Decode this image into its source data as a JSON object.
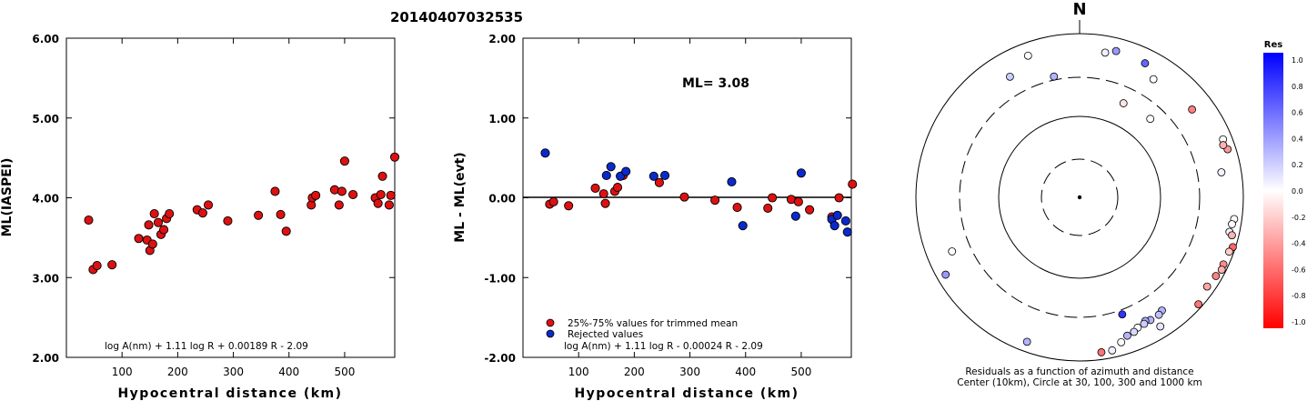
{
  "title": "20140407032535",
  "chart_data": [
    {
      "type": "scatter",
      "ylabel": "ML(IASPEI)",
      "xlabel": "Hypocentral distance (km)",
      "xlim": [
        0,
        590
      ],
      "ylim": [
        2.0,
        6.0
      ],
      "xticks": [
        100,
        200,
        300,
        400,
        500
      ],
      "yticks": [
        "2.00",
        "3.00",
        "4.00",
        "5.00",
        "6.00"
      ],
      "formula": "log A(nm) + 1.11 log R + 0.00189 R - 2.09",
      "color": "#dd1111",
      "points": [
        [
          40,
          3.72
        ],
        [
          48,
          3.1
        ],
        [
          55,
          3.15
        ],
        [
          82,
          3.16
        ],
        [
          130,
          3.49
        ],
        [
          145,
          3.47
        ],
        [
          148,
          3.66
        ],
        [
          150,
          3.34
        ],
        [
          155,
          3.42
        ],
        [
          158,
          3.8
        ],
        [
          165,
          3.69
        ],
        [
          170,
          3.54
        ],
        [
          175,
          3.6
        ],
        [
          180,
          3.74
        ],
        [
          185,
          3.8
        ],
        [
          235,
          3.85
        ],
        [
          245,
          3.81
        ],
        [
          255,
          3.91
        ],
        [
          290,
          3.71
        ],
        [
          345,
          3.78
        ],
        [
          375,
          4.08
        ],
        [
          385,
          3.79
        ],
        [
          395,
          3.58
        ],
        [
          440,
          3.91
        ],
        [
          442,
          4.0
        ],
        [
          448,
          4.03
        ],
        [
          482,
          4.1
        ],
        [
          490,
          3.91
        ],
        [
          495,
          4.08
        ],
        [
          500,
          4.46
        ],
        [
          515,
          4.04
        ],
        [
          555,
          4.0
        ],
        [
          560,
          3.93
        ],
        [
          565,
          4.04
        ],
        [
          568,
          4.27
        ],
        [
          580,
          3.91
        ],
        [
          583,
          4.03
        ],
        [
          590,
          4.51
        ]
      ]
    },
    {
      "type": "scatter",
      "ylabel": "ML - ML(evt)",
      "xlabel": "Hypocentral distance (km)",
      "xlim": [
        0,
        590
      ],
      "ylim": [
        -2.0,
        2.0
      ],
      "xticks": [
        100,
        200,
        300,
        400,
        500
      ],
      "yticks": [
        "-2.00",
        "-1.00",
        "0.00",
        "1.00",
        "2.00"
      ],
      "annotation": "ML= 3.08",
      "formula": "log A(nm) + 1.11 log R - 0.00024 R - 2.09",
      "legend": [
        {
          "label": "25%-75% values for trimmed mean",
          "color": "#dd1111"
        },
        {
          "label": "Rejected values",
          "color": "#0a2acc"
        }
      ],
      "series": [
        {
          "name": "25%-75% values for trimmed mean",
          "color": "#dd1111",
          "points": [
            [
              48,
              -0.08
            ],
            [
              55,
              -0.05
            ],
            [
              82,
              -0.1
            ],
            [
              130,
              0.12
            ],
            [
              145,
              0.05
            ],
            [
              148,
              -0.07
            ],
            [
              165,
              0.08
            ],
            [
              170,
              0.13
            ],
            [
              180,
              0.28
            ],
            [
              245,
              0.19
            ],
            [
              290,
              0.01
            ],
            [
              345,
              -0.03
            ],
            [
              385,
              -0.12
            ],
            [
              440,
              -0.13
            ],
            [
              448,
              0.0
            ],
            [
              482,
              -0.02
            ],
            [
              495,
              -0.05
            ],
            [
              515,
              -0.15
            ],
            [
              555,
              -0.24
            ],
            [
              568,
              0.0
            ],
            [
              592,
              0.17
            ]
          ]
        },
        {
          "name": "Rejected values",
          "color": "#0a2acc",
          "points": [
            [
              40,
              0.56
            ],
            [
              150,
              0.28
            ],
            [
              158,
              0.39
            ],
            [
              175,
              0.27
            ],
            [
              185,
              0.33
            ],
            [
              235,
              0.27
            ],
            [
              255,
              0.28
            ],
            [
              375,
              0.2
            ],
            [
              395,
              -0.35
            ],
            [
              490,
              -0.23
            ],
            [
              500,
              0.31
            ],
            [
              555,
              -0.27
            ],
            [
              560,
              -0.35
            ],
            [
              565,
              -0.22
            ],
            [
              580,
              -0.29
            ],
            [
              583,
              -0.43
            ]
          ]
        }
      ]
    },
    {
      "type": "polar_scatter",
      "north_label": "N",
      "caption_line1": "Residuals as a function of azimuth and distance",
      "caption_line2": "Center (10km), Circle at 30, 100, 300 and 1000 km",
      "rings_km": [
        30,
        100,
        300,
        1000
      ],
      "colorbar": {
        "title": "Res",
        "ticks": [
          "1.0",
          "0.8",
          "0.6",
          "0.4",
          "0.2",
          "0.0",
          "-0.2",
          "-0.4",
          "-0.6",
          "-0.8",
          "-1.0"
        ]
      },
      "points": [
        {
          "az": 340,
          "dist": 700,
          "res": 0.0
        },
        {
          "az": 348,
          "dist": 330,
          "res": 0.3
        },
        {
          "az": 330,
          "dist": 510,
          "res": 0.2
        },
        {
          "az": 10,
          "dist": 630,
          "res": 0.05
        },
        {
          "az": 14,
          "dist": 700,
          "res": 0.4
        },
        {
          "az": 26,
          "dist": 670,
          "res": 0.6
        },
        {
          "az": 32,
          "dist": 510,
          "res": 0.0
        },
        {
          "az": 52,
          "dist": 560,
          "res": -0.5
        },
        {
          "az": 25,
          "dist": 190,
          "res": -0.1
        },
        {
          "az": 42,
          "dist": 200,
          "res": 0.0
        },
        {
          "az": 68,
          "dist": 780,
          "res": 0.0
        },
        {
          "az": 72,
          "dist": 800,
          "res": -0.4
        },
        {
          "az": 70,
          "dist": 740,
          "res": -0.3
        },
        {
          "az": 80,
          "dist": 580,
          "res": 0.05
        },
        {
          "az": 98,
          "dist": 810,
          "res": 0.0
        },
        {
          "az": 100,
          "dist": 780,
          "res": 0.0
        },
        {
          "az": 103,
          "dist": 760,
          "res": 0.05
        },
        {
          "az": 104,
          "dist": 830,
          "res": -0.3
        },
        {
          "az": 108,
          "dist": 930,
          "res": -0.6
        },
        {
          "az": 110,
          "dist": 880,
          "res": -0.2
        },
        {
          "az": 115,
          "dist": 870,
          "res": -0.45
        },
        {
          "az": 117,
          "dist": 890,
          "res": -0.3
        },
        {
          "az": 120,
          "dist": 840,
          "res": -0.5
        },
        {
          "az": 125,
          "dist": 800,
          "res": -0.35
        },
        {
          "az": 132,
          "dist": 900,
          "res": -0.55
        },
        {
          "az": 148,
          "dist": 730,
          "res": 0.1
        },
        {
          "az": 144,
          "dist": 520,
          "res": 0.3
        },
        {
          "az": 146,
          "dist": 545,
          "res": 0.25
        },
        {
          "az": 150,
          "dist": 545,
          "res": 0.3
        },
        {
          "az": 152,
          "dist": 520,
          "res": 0.35
        },
        {
          "az": 153,
          "dist": 550,
          "res": 0.2
        },
        {
          "az": 156,
          "dist": 560,
          "res": 0.0
        },
        {
          "az": 158,
          "dist": 600,
          "res": 0.15
        },
        {
          "az": 161,
          "dist": 620,
          "res": 0.3
        },
        {
          "az": 164,
          "dist": 700,
          "res": 0.0
        },
        {
          "az": 168,
          "dist": 820,
          "res": 0.05
        },
        {
          "az": 160,
          "dist": 340,
          "res": 0.8
        },
        {
          "az": 172,
          "dist": 820,
          "res": -0.55
        },
        {
          "az": 200,
          "dist": 760,
          "res": 0.3
        },
        {
          "az": 240,
          "dist": 780,
          "res": 0.4
        },
        {
          "az": 247,
          "dist": 500,
          "res": 0.0
        }
      ]
    }
  ]
}
